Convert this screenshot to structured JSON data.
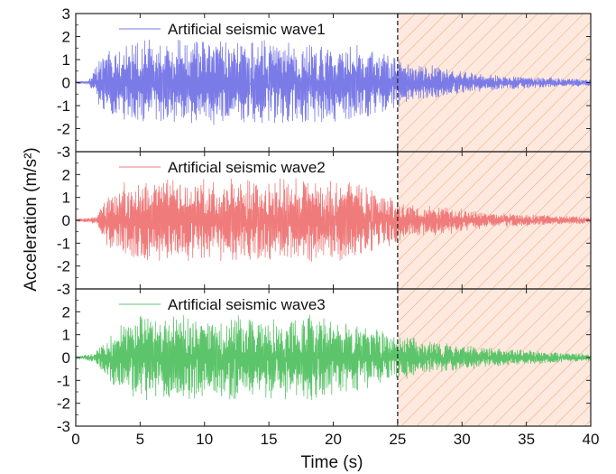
{
  "chart_data": [
    {
      "type": "line",
      "panel": "top",
      "series": [
        {
          "name": "Artificial seismic wave1",
          "color": "#7b7be8"
        }
      ],
      "x_range": [
        0,
        40
      ],
      "ylim": [
        -3,
        3
      ],
      "y_ticks": [
        "3",
        "2",
        "1",
        "0",
        "-1",
        "-2",
        "-3"
      ],
      "shaded_x_range": [
        25,
        40
      ],
      "vline_x": 25,
      "envelope": [
        {
          "t": 0,
          "amp": 0.05
        },
        {
          "t": 1,
          "amp": 0.1
        },
        {
          "t": 2,
          "amp": 1.2
        },
        {
          "t": 3,
          "amp": 1.6
        },
        {
          "t": 6,
          "amp": 1.9
        },
        {
          "t": 20,
          "amp": 1.9
        },
        {
          "t": 24.5,
          "amp": 1.3
        },
        {
          "t": 26,
          "amp": 0.8
        },
        {
          "t": 28,
          "amp": 0.75
        },
        {
          "t": 32,
          "amp": 0.35
        },
        {
          "t": 36,
          "amp": 0.25
        },
        {
          "t": 40,
          "amp": 0.15
        }
      ]
    },
    {
      "type": "line",
      "panel": "middle",
      "series": [
        {
          "name": "Artificial seismic wave2",
          "color": "#f07b7b"
        }
      ],
      "x_range": [
        0,
        40
      ],
      "ylim": [
        -3,
        3
      ],
      "y_ticks": [
        "2",
        "1",
        "0",
        "-1",
        "-2",
        "-3"
      ],
      "shaded_x_range": [
        25,
        40
      ],
      "vline_x": 25,
      "envelope": [
        {
          "t": 0,
          "amp": 0.05
        },
        {
          "t": 1.5,
          "amp": 0.15
        },
        {
          "t": 2.5,
          "amp": 1.2
        },
        {
          "t": 4,
          "amp": 1.8
        },
        {
          "t": 15,
          "amp": 1.9
        },
        {
          "t": 21,
          "amp": 1.8
        },
        {
          "t": 24.5,
          "amp": 1.2
        },
        {
          "t": 26,
          "amp": 0.8
        },
        {
          "t": 28,
          "amp": 0.7
        },
        {
          "t": 32,
          "amp": 0.35
        },
        {
          "t": 36,
          "amp": 0.25
        },
        {
          "t": 40,
          "amp": 0.15
        }
      ]
    },
    {
      "type": "line",
      "panel": "bottom",
      "series": [
        {
          "name": "Artificial seismic wave3",
          "color": "#5cc46a"
        }
      ],
      "x_range": [
        0,
        40
      ],
      "ylim": [
        -3,
        3
      ],
      "y_ticks": [
        "2",
        "1",
        "0",
        "-1",
        "-2",
        "-3"
      ],
      "x_ticks": [
        "0",
        "5",
        "10",
        "15",
        "20",
        "25",
        "30",
        "35",
        "40"
      ],
      "shaded_x_range": [
        25,
        40
      ],
      "vline_x": 25,
      "envelope": [
        {
          "t": 0,
          "amp": 0.05
        },
        {
          "t": 1.5,
          "amp": 0.2
        },
        {
          "t": 3,
          "amp": 1.3
        },
        {
          "t": 5,
          "amp": 1.9
        },
        {
          "t": 20,
          "amp": 1.9
        },
        {
          "t": 24.5,
          "amp": 1.1
        },
        {
          "t": 26,
          "amp": 1.0
        },
        {
          "t": 27,
          "amp": 0.75
        },
        {
          "t": 32,
          "amp": 0.45
        },
        {
          "t": 36,
          "amp": 0.3
        },
        {
          "t": 40,
          "amp": 0.15
        }
      ]
    }
  ],
  "axes": {
    "ylabel": "Acceleration (m/s²)",
    "xlabel": "Time (s)"
  },
  "colors": {
    "shade_fill": "#fde9de",
    "hatch": "#f2a27c",
    "vline": "#333333"
  }
}
